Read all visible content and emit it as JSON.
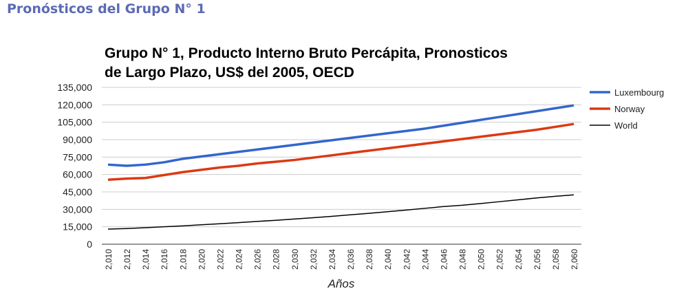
{
  "heading": "Pronósticos del Grupo N° 1",
  "chart_data": {
    "type": "line",
    "title_lines": [
      "Grupo N° 1, Producto Interno Bruto Percápita, Pronosticos",
      "de Largo Plazo, US$ del 2005, OECD"
    ],
    "xlabel": "Años",
    "ylabel": "",
    "ylim": [
      0,
      135000
    ],
    "yticks": [
      "0",
      "15,000",
      "30,000",
      "45,000",
      "60,000",
      "75,000",
      "90,000",
      "105,000",
      "120,000",
      "135,000"
    ],
    "xlim": [
      2010,
      2060
    ],
    "xticks": [
      "2,010",
      "2,012",
      "2,014",
      "2,016",
      "2,018",
      "2,020",
      "2,022",
      "2,024",
      "2,026",
      "2,028",
      "2,030",
      "2,032",
      "2,034",
      "2,036",
      "2,038",
      "2,040",
      "2,042",
      "2,044",
      "2,046",
      "2,048",
      "2,050",
      "2,052",
      "2,054",
      "2,056",
      "2,058",
      "2,060"
    ],
    "x": [
      2010,
      2012,
      2014,
      2016,
      2018,
      2020,
      2022,
      2024,
      2026,
      2028,
      2030,
      2032,
      2034,
      2036,
      2038,
      2040,
      2042,
      2044,
      2046,
      2048,
      2050,
      2052,
      2054,
      2056,
      2058,
      2060
    ],
    "grid": true,
    "legend_position": "right",
    "series": [
      {
        "name": "Luxembourg",
        "color": "#3366cc",
        "values": [
          68500,
          67500,
          68500,
          70500,
          73500,
          75500,
          77500,
          79500,
          81500,
          83500,
          85500,
          87500,
          89500,
          91500,
          93500,
          95500,
          97500,
          99500,
          102000,
          104500,
          107000,
          109500,
          112000,
          114500,
          117000,
          119500
        ]
      },
      {
        "name": "Norway",
        "color": "#dc3912",
        "values": [
          55500,
          56500,
          57000,
          59500,
          62000,
          64000,
          66000,
          67500,
          69500,
          71000,
          72500,
          74500,
          76500,
          78500,
          80500,
          82500,
          84500,
          86500,
          88500,
          90500,
          92500,
          94500,
          96500,
          98500,
          101000,
          103500
        ]
      },
      {
        "name": "World",
        "color": "#000000",
        "values": [
          13000,
          13500,
          14200,
          15000,
          15800,
          16700,
          17600,
          18600,
          19600,
          20600,
          21700,
          22800,
          24000,
          25300,
          26600,
          28000,
          29400,
          30900,
          32400,
          33500,
          35000,
          36600,
          38200,
          39800,
          41200,
          42500
        ]
      }
    ]
  }
}
